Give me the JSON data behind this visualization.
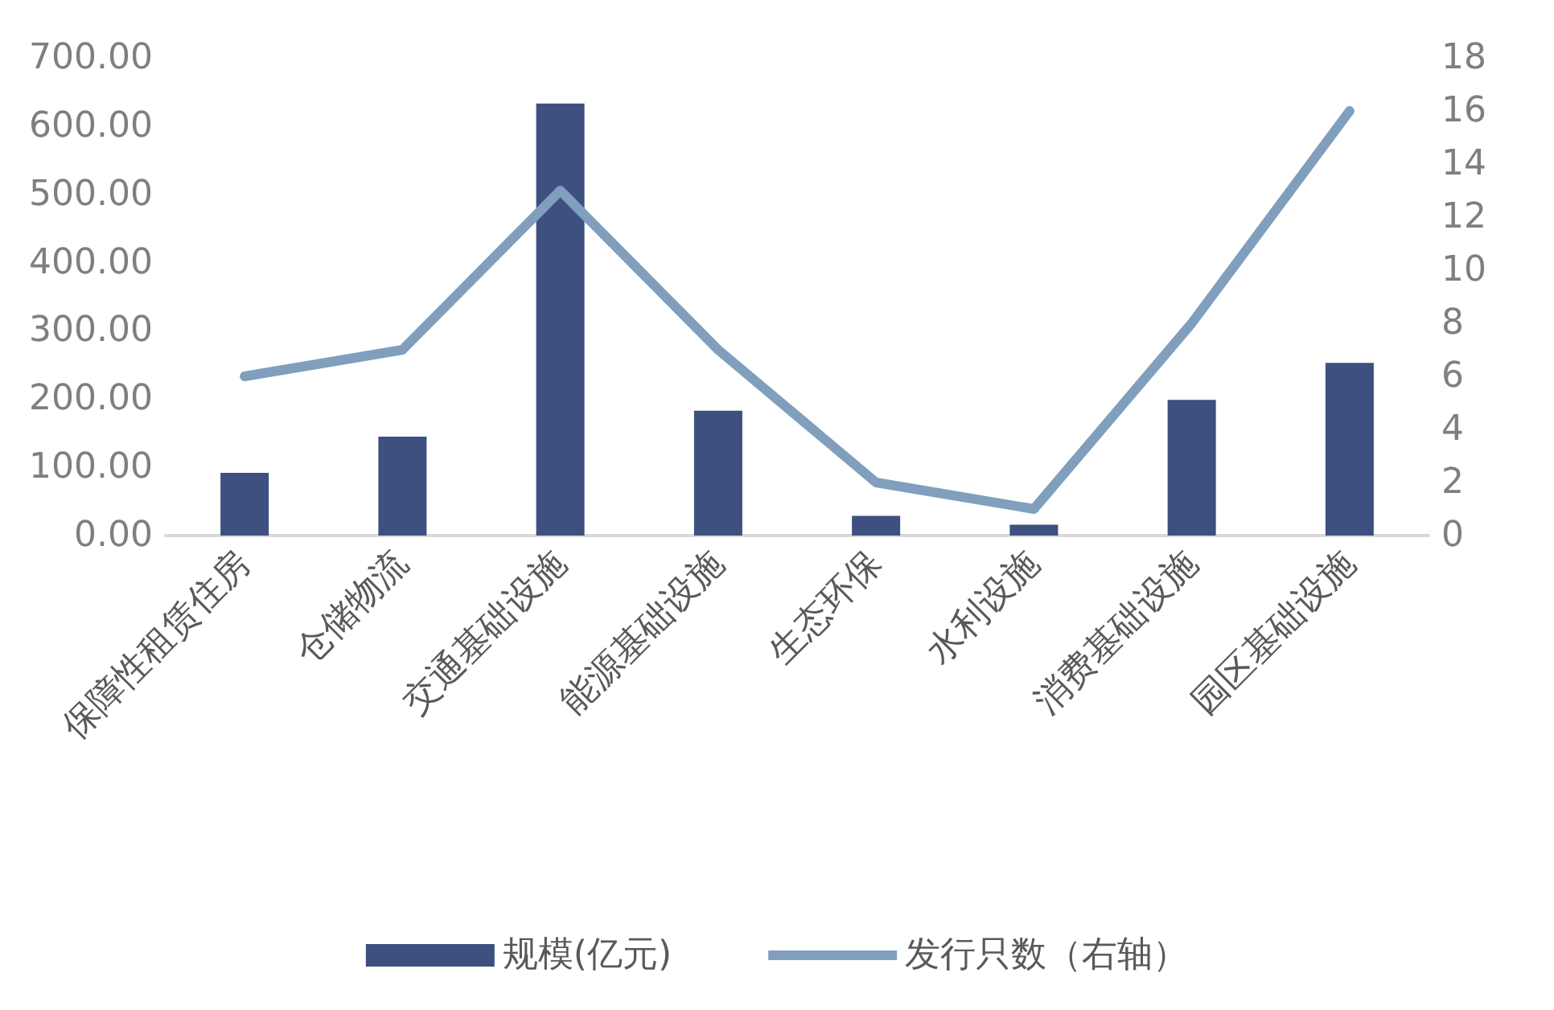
{
  "chart_data": {
    "type": "bar",
    "categories": [
      "保障性租赁住房",
      "仓储物流",
      "交通基础设施",
      "能源基础设施",
      "生态环保",
      "水利设施",
      "消费基础设施",
      "园区基础设施"
    ],
    "series": [
      {
        "name": "规模(亿元)",
        "color": "#3d5080",
        "values": [
          92,
          145,
          633,
          183,
          29,
          16,
          199,
          253
        ]
      },
      {
        "name": "发行只数（右轴）",
        "type": "line",
        "axis": "y2",
        "color": "#7f9fbd",
        "values": [
          6,
          7,
          13,
          7,
          2,
          1,
          8,
          16
        ]
      }
    ],
    "ylim": [
      0,
      700
    ],
    "yticks": [
      {
        "value": 0,
        "label": "0.00"
      },
      {
        "value": 100,
        "label": "100.00"
      },
      {
        "value": 200,
        "label": "200.00"
      },
      {
        "value": 300,
        "label": "300.00"
      },
      {
        "value": 400,
        "label": "400.00"
      },
      {
        "value": 500,
        "label": "500.00"
      },
      {
        "value": 600,
        "label": "600.00"
      },
      {
        "value": 700,
        "label": "700.00"
      }
    ],
    "y2lim": [
      0,
      18
    ],
    "y2ticks": [
      0,
      2,
      4,
      6,
      8,
      10,
      12,
      14,
      16,
      18
    ],
    "grid": false,
    "legend": "bottom",
    "marker": "none",
    "line_style": "solid"
  }
}
